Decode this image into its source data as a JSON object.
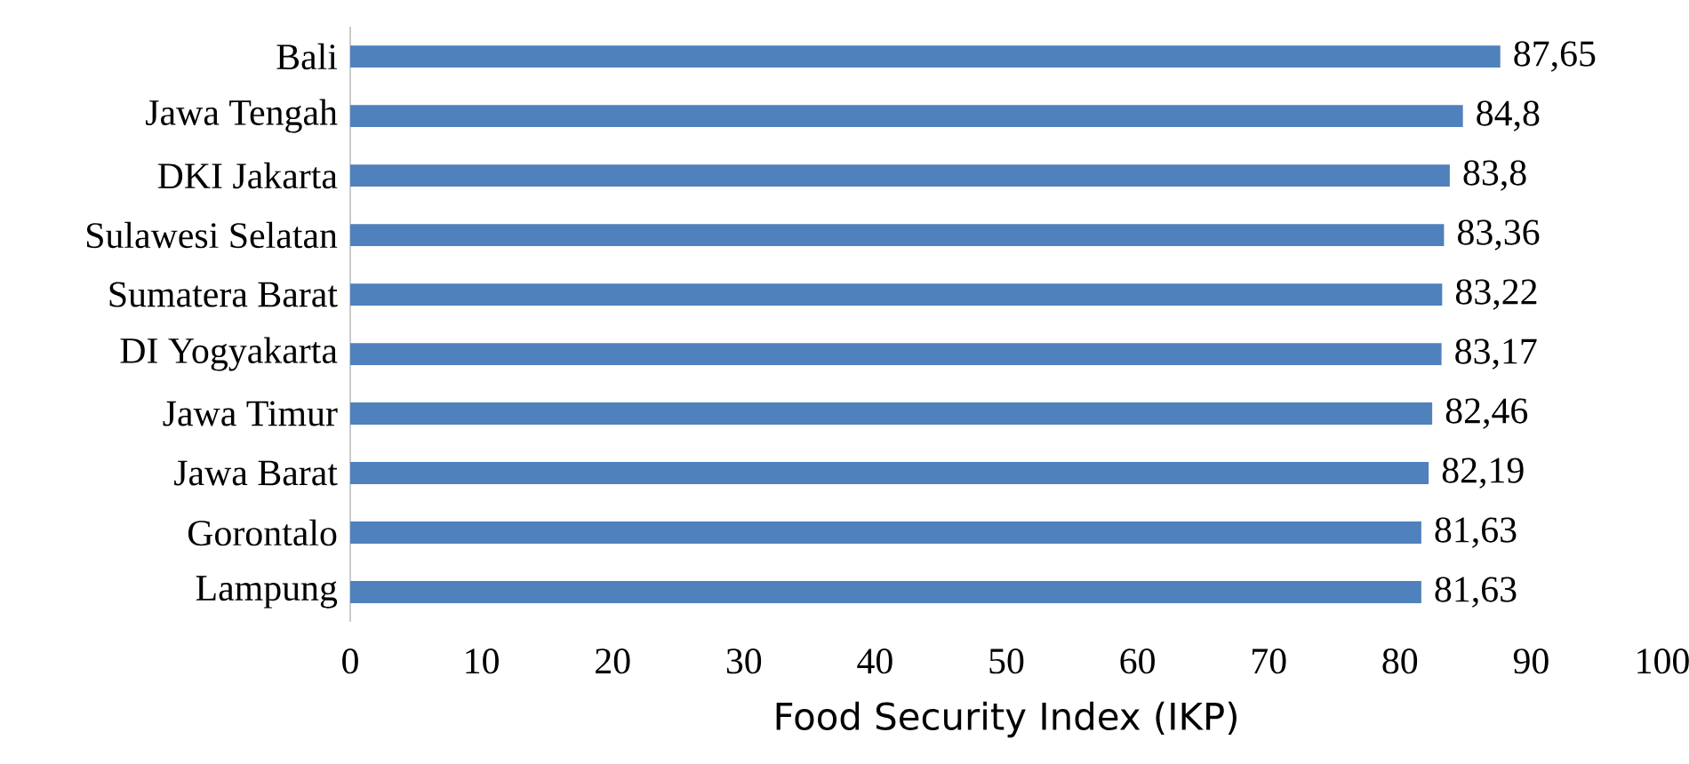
{
  "chart_data": {
    "type": "bar",
    "orientation": "horizontal",
    "xlabel": "Food Security Index (IKP)",
    "categories": [
      "Bali",
      "Jawa Tengah",
      "DKI Jakarta",
      "Sulawesi Selatan",
      "Sumatera Barat",
      "DI Yogyakarta",
      "Jawa Timur",
      "Jawa Barat",
      "Gorontalo",
      "Lampung"
    ],
    "values": [
      87.65,
      84.8,
      83.8,
      83.36,
      83.22,
      83.17,
      82.46,
      82.19,
      81.63,
      81.63
    ],
    "value_labels": [
      "87,65",
      "84,8",
      "83,8",
      "83,36",
      "83,22",
      "83,17",
      "82,46",
      "82,19",
      "81,63",
      "81,63"
    ],
    "color": "#4f81bd",
    "xlim": [
      0,
      100
    ],
    "xticks": [
      0,
      10,
      20,
      30,
      40,
      50,
      60,
      70,
      80,
      90,
      100
    ]
  }
}
